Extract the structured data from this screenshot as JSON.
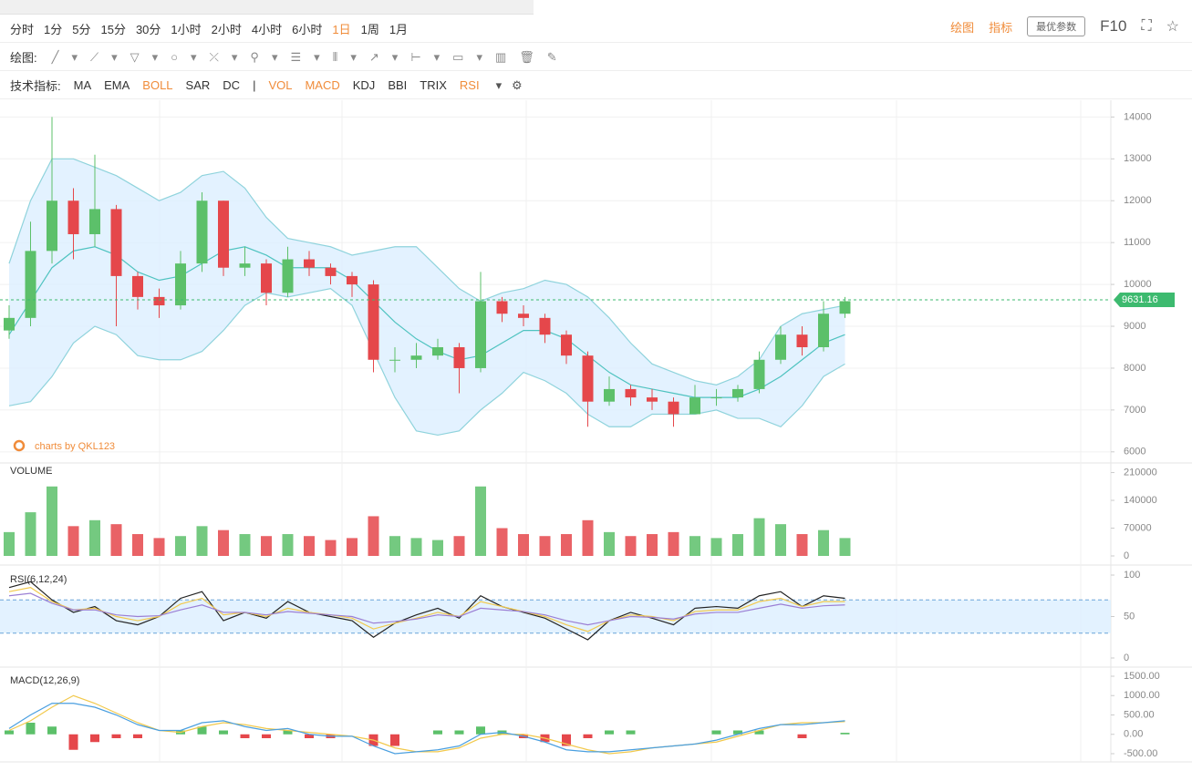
{
  "toolbar": {
    "periods": [
      {
        "label": "分时"
      },
      {
        "label": "1分"
      },
      {
        "label": "5分"
      },
      {
        "label": "15分"
      },
      {
        "label": "30分"
      },
      {
        "label": "1小时"
      },
      {
        "label": "2小时"
      },
      {
        "label": "4小时"
      },
      {
        "label": "6小时"
      },
      {
        "label": "1日",
        "active": true
      },
      {
        "label": "1周"
      },
      {
        "label": "1月"
      }
    ],
    "right": {
      "draw": "绘图",
      "indicator": "指标",
      "best_params": "最优参数",
      "f10": "F10"
    },
    "draw_label": "绘图:",
    "indicator_label": "技术指标:",
    "indicators": [
      {
        "label": "MA"
      },
      {
        "label": "EMA"
      },
      {
        "label": "BOLL",
        "active": true
      },
      {
        "label": "SAR"
      },
      {
        "label": "DC"
      },
      {
        "label": "|"
      },
      {
        "label": "VOL",
        "active": true
      },
      {
        "label": "MACD",
        "active": true
      },
      {
        "label": "KDJ"
      },
      {
        "label": "BBI"
      },
      {
        "label": "TRIX"
      },
      {
        "label": "RSI",
        "active": true
      }
    ]
  },
  "chart_data": [
    {
      "type": "candlestick",
      "watermark": "charts by QKL123",
      "up_color": "#5cc06a",
      "down_color": "#e5474b",
      "open": [
        8900,
        9200,
        10800,
        12000,
        11200,
        11800,
        10200,
        9700,
        9500,
        10500,
        12000,
        10400,
        10500,
        9800,
        10600,
        10400,
        10200,
        10000,
        8200,
        8200,
        8300,
        8500,
        8000,
        9600,
        9300,
        9200,
        8800,
        8300,
        7200,
        7500,
        7300,
        7200,
        6900,
        7300,
        7300,
        7500,
        8200,
        8800,
        8500,
        9300
      ],
      "high": [
        9500,
        11500,
        14000,
        12300,
        13100,
        11900,
        10300,
        9900,
        10800,
        12200,
        12000,
        10900,
        10600,
        10900,
        10800,
        10500,
        10300,
        10100,
        8500,
        8600,
        8700,
        8600,
        10300,
        9700,
        9500,
        9300,
        8900,
        8400,
        7800,
        7600,
        7500,
        7300,
        7600,
        7500,
        7600,
        8400,
        9000,
        9000,
        9600,
        9700
      ],
      "low": [
        8700,
        9000,
        10500,
        10600,
        10900,
        9000,
        9400,
        9200,
        9400,
        10300,
        10200,
        10200,
        9500,
        9700,
        10200,
        10000,
        9700,
        7900,
        7900,
        8000,
        8200,
        7400,
        7900,
        9100,
        9000,
        8600,
        8100,
        6600,
        7100,
        7100,
        7000,
        6600,
        6900,
        7100,
        7200,
        7400,
        8100,
        8300,
        8400,
        9200
      ],
      "close": [
        9200,
        10800,
        12000,
        11200,
        11800,
        10200,
        9700,
        9500,
        10500,
        12000,
        10400,
        10500,
        9800,
        10600,
        10400,
        10200,
        10000,
        8200,
        8200,
        8300,
        8500,
        8000,
        9600,
        9300,
        9200,
        8800,
        8300,
        7200,
        7500,
        7300,
        7200,
        6900,
        7300,
        7300,
        7500,
        8200,
        8800,
        8500,
        9300,
        9600
      ],
      "bollinger": {
        "line_color": "#8fd3dc",
        "mid_color": "#4fc3c0",
        "fill": "#dcefff",
        "upper": [
          10500,
          12000,
          13000,
          13000,
          12800,
          12600,
          12300,
          12000,
          12200,
          12600,
          12700,
          12300,
          11600,
          11100,
          11000,
          10900,
          10700,
          10800,
          10900,
          10900,
          10400,
          9900,
          9600,
          9800,
          9900,
          10100,
          10000,
          9700,
          9200,
          8600,
          8100,
          7900,
          7700,
          7600,
          7800,
          8200,
          9000,
          9300,
          9400,
          9500
        ],
        "middle": [
          8800,
          9600,
          10400,
          10800,
          10900,
          10700,
          10300,
          10100,
          10200,
          10500,
          10800,
          10900,
          10700,
          10400,
          10400,
          10400,
          10100,
          9600,
          9100,
          8700,
          8400,
          8200,
          8300,
          8600,
          8900,
          8900,
          8700,
          8300,
          7900,
          7600,
          7500,
          7400,
          7300,
          7300,
          7300,
          7500,
          7800,
          8200,
          8600,
          8800
        ],
        "lower": [
          7100,
          7200,
          7800,
          8600,
          9000,
          8800,
          8300,
          8200,
          8200,
          8400,
          8900,
          9500,
          9800,
          9700,
          9800,
          9900,
          9500,
          8400,
          7300,
          6500,
          6400,
          6500,
          7000,
          7400,
          7900,
          7700,
          7400,
          6900,
          6600,
          6600,
          6900,
          6900,
          6900,
          7000,
          6800,
          6800,
          6600,
          7100,
          7800,
          8100
        ]
      },
      "last_price": 9631.16,
      "last_price_color": "#3dba6f",
      "ylim": [
        5800,
        14400
      ],
      "yticks": [
        6000,
        7000,
        8000,
        9000,
        10000,
        11000,
        12000,
        13000,
        14000
      ]
    },
    {
      "type": "bar",
      "title": "VOLUME",
      "values": [
        60000,
        110000,
        175000,
        75000,
        90000,
        80000,
        55000,
        45000,
        50000,
        75000,
        65000,
        55000,
        50000,
        55000,
        50000,
        40000,
        45000,
        100000,
        50000,
        45000,
        40000,
        50000,
        175000,
        70000,
        55000,
        50000,
        55000,
        90000,
        60000,
        50000,
        55000,
        60000,
        50000,
        45000,
        55000,
        95000,
        80000,
        55000,
        65000,
        45000
      ],
      "ylim": [
        0,
        225000
      ],
      "yticks": [
        0,
        70000,
        140000,
        210000
      ]
    },
    {
      "type": "line",
      "title": "RSI(6,12,24)",
      "band_fill": "#dcefff",
      "bands": [
        70,
        30
      ],
      "series": [
        {
          "color": "#222222",
          "values": [
            85,
            92,
            70,
            55,
            62,
            45,
            40,
            50,
            72,
            80,
            45,
            55,
            48,
            68,
            55,
            50,
            45,
            25,
            42,
            52,
            60,
            48,
            75,
            62,
            55,
            48,
            35,
            22,
            45,
            55,
            48,
            40,
            60,
            62,
            60,
            75,
            80,
            62,
            75,
            72
          ]
        },
        {
          "color": "#f2c94c",
          "values": [
            80,
            85,
            68,
            58,
            60,
            50,
            45,
            50,
            65,
            72,
            52,
            55,
            50,
            60,
            55,
            52,
            48,
            35,
            42,
            48,
            55,
            50,
            68,
            62,
            56,
            50,
            40,
            32,
            45,
            52,
            50,
            45,
            56,
            58,
            58,
            68,
            72,
            62,
            68,
            68
          ]
        },
        {
          "color": "#9b7fd4",
          "values": [
            75,
            78,
            66,
            58,
            58,
            52,
            50,
            51,
            58,
            64,
            55,
            55,
            52,
            56,
            54,
            52,
            50,
            42,
            44,
            47,
            52,
            50,
            60,
            58,
            56,
            52,
            45,
            40,
            45,
            50,
            49,
            47,
            53,
            55,
            55,
            60,
            65,
            60,
            63,
            64
          ]
        }
      ],
      "ylim": [
        0,
        100
      ],
      "yticks": [
        0,
        50,
        100
      ]
    },
    {
      "type": "macd",
      "title": "MACD(12,26,9)",
      "dif": {
        "color": "#4a9fe0",
        "values": [
          150,
          500,
          800,
          800,
          700,
          500,
          250,
          100,
          100,
          300,
          350,
          200,
          100,
          150,
          0,
          -50,
          -50,
          -300,
          -500,
          -450,
          -400,
          -300,
          0,
          50,
          -50,
          -200,
          -400,
          -450,
          -450,
          -400,
          -350,
          -300,
          -250,
          -150,
          0,
          150,
          250,
          250,
          300,
          350
        ]
      },
      "dea": {
        "color": "#f2c94c",
        "values": [
          100,
          350,
          700,
          1000,
          800,
          550,
          300,
          100,
          50,
          200,
          300,
          250,
          150,
          100,
          50,
          0,
          -50,
          -150,
          -350,
          -450,
          -450,
          -350,
          -100,
          0,
          0,
          -100,
          -250,
          -400,
          -500,
          -450,
          -350,
          -300,
          -250,
          -200,
          -50,
          100,
          250,
          300,
          300,
          330
        ]
      },
      "histogram": [
        100,
        300,
        200,
        -400,
        -200,
        -100,
        -100,
        0,
        100,
        200,
        100,
        -100,
        -100,
        100,
        -100,
        -100,
        0,
        -300,
        -300,
        0,
        100,
        100,
        200,
        100,
        -100,
        -200,
        -300,
        -100,
        100,
        100,
        0,
        0,
        0,
        100,
        100,
        100,
        0,
        -100,
        0,
        40
      ],
      "ylim": [
        -500,
        1500
      ],
      "yticks": [
        {
          "value": -500,
          "label": "-500.00"
        },
        {
          "value": 0,
          "label": "0.00"
        },
        {
          "value": 500,
          "label": "500.00"
        },
        {
          "value": 1000,
          "label": "1000.00"
        },
        {
          "value": 1500,
          "label": "1500.00"
        }
      ]
    }
  ]
}
